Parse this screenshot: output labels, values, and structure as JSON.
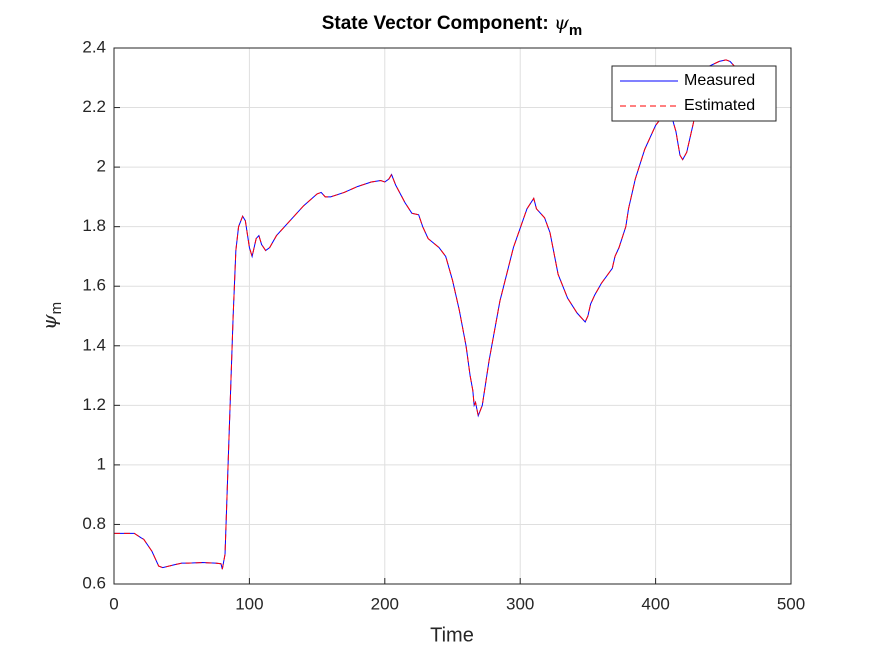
{
  "chart_data": {
    "type": "line",
    "title": {
      "text": "State Vector Component:",
      "symbol": "ψ",
      "subscript": "m"
    },
    "xlabel": "Time",
    "ylabel": {
      "symbol": "ψ",
      "subscript": "m"
    },
    "x": [
      0,
      10,
      15,
      20,
      22,
      28,
      33,
      36,
      45,
      50,
      55,
      65,
      75,
      79,
      80,
      82,
      85,
      88,
      90,
      92,
      95,
      97,
      100,
      102,
      105,
      107,
      109,
      112,
      115,
      120,
      130,
      140,
      150,
      153,
      156,
      160,
      170,
      180,
      190,
      197,
      200,
      203,
      205,
      208,
      215,
      220,
      225,
      228,
      232,
      240,
      245,
      250,
      255,
      260,
      263,
      265,
      266,
      267,
      269,
      272,
      277,
      285,
      295,
      305,
      310,
      312,
      318,
      322,
      328,
      335,
      342,
      348,
      350,
      352,
      355,
      360,
      368,
      370,
      373,
      378,
      380,
      385,
      392,
      400,
      405,
      410,
      415,
      418,
      420,
      423,
      428,
      433,
      440,
      447,
      452,
      455,
      458
    ],
    "series": [
      {
        "name": "Measured",
        "color": "#0000ff",
        "style": "solid",
        "values": [
          0.77,
          0.77,
          0.77,
          0.755,
          0.75,
          0.71,
          0.66,
          0.655,
          0.665,
          0.67,
          0.67,
          0.672,
          0.67,
          0.668,
          0.65,
          0.7,
          1.1,
          1.5,
          1.72,
          1.8,
          1.835,
          1.82,
          1.73,
          1.7,
          1.76,
          1.77,
          1.74,
          1.72,
          1.73,
          1.77,
          1.82,
          1.87,
          1.91,
          1.915,
          1.9,
          1.9,
          1.915,
          1.935,
          1.95,
          1.955,
          1.95,
          1.96,
          1.975,
          1.94,
          1.88,
          1.845,
          1.84,
          1.8,
          1.76,
          1.73,
          1.7,
          1.62,
          1.52,
          1.4,
          1.3,
          1.25,
          1.2,
          1.21,
          1.165,
          1.2,
          1.35,
          1.55,
          1.73,
          1.86,
          1.895,
          1.86,
          1.83,
          1.78,
          1.64,
          1.56,
          1.51,
          1.48,
          1.5,
          1.54,
          1.57,
          1.61,
          1.66,
          1.7,
          1.73,
          1.8,
          1.86,
          1.96,
          2.06,
          2.14,
          2.17,
          2.2,
          2.12,
          2.04,
          2.025,
          2.05,
          2.15,
          2.3,
          2.34,
          2.355,
          2.36,
          2.355,
          2.34
        ]
      },
      {
        "name": "Estimated",
        "color": "#ff0000",
        "style": "dashed",
        "values": [
          0.77,
          0.77,
          0.77,
          0.755,
          0.75,
          0.71,
          0.66,
          0.655,
          0.665,
          0.67,
          0.67,
          0.672,
          0.67,
          0.668,
          0.65,
          0.7,
          1.1,
          1.5,
          1.72,
          1.8,
          1.835,
          1.82,
          1.73,
          1.7,
          1.76,
          1.77,
          1.74,
          1.72,
          1.73,
          1.77,
          1.82,
          1.87,
          1.91,
          1.915,
          1.9,
          1.9,
          1.915,
          1.935,
          1.95,
          1.955,
          1.95,
          1.96,
          1.975,
          1.94,
          1.88,
          1.845,
          1.84,
          1.8,
          1.76,
          1.73,
          1.7,
          1.62,
          1.52,
          1.4,
          1.3,
          1.25,
          1.2,
          1.21,
          1.165,
          1.2,
          1.35,
          1.55,
          1.73,
          1.86,
          1.895,
          1.86,
          1.83,
          1.78,
          1.64,
          1.56,
          1.51,
          1.48,
          1.5,
          1.54,
          1.57,
          1.61,
          1.66,
          1.7,
          1.73,
          1.8,
          1.86,
          1.96,
          2.06,
          2.14,
          2.17,
          2.2,
          2.12,
          2.04,
          2.025,
          2.05,
          2.15,
          2.3,
          2.34,
          2.355,
          2.36,
          2.355,
          2.34
        ]
      }
    ],
    "xlim": [
      0,
      500
    ],
    "xticks": [
      0,
      100,
      200,
      300,
      400,
      500
    ],
    "ylim": [
      0.6,
      2.4
    ],
    "yticks": [
      0.6,
      0.8,
      1,
      1.2,
      1.4,
      1.6,
      1.8,
      2,
      2.2,
      2.4
    ],
    "grid": true,
    "legend": "northeast"
  }
}
